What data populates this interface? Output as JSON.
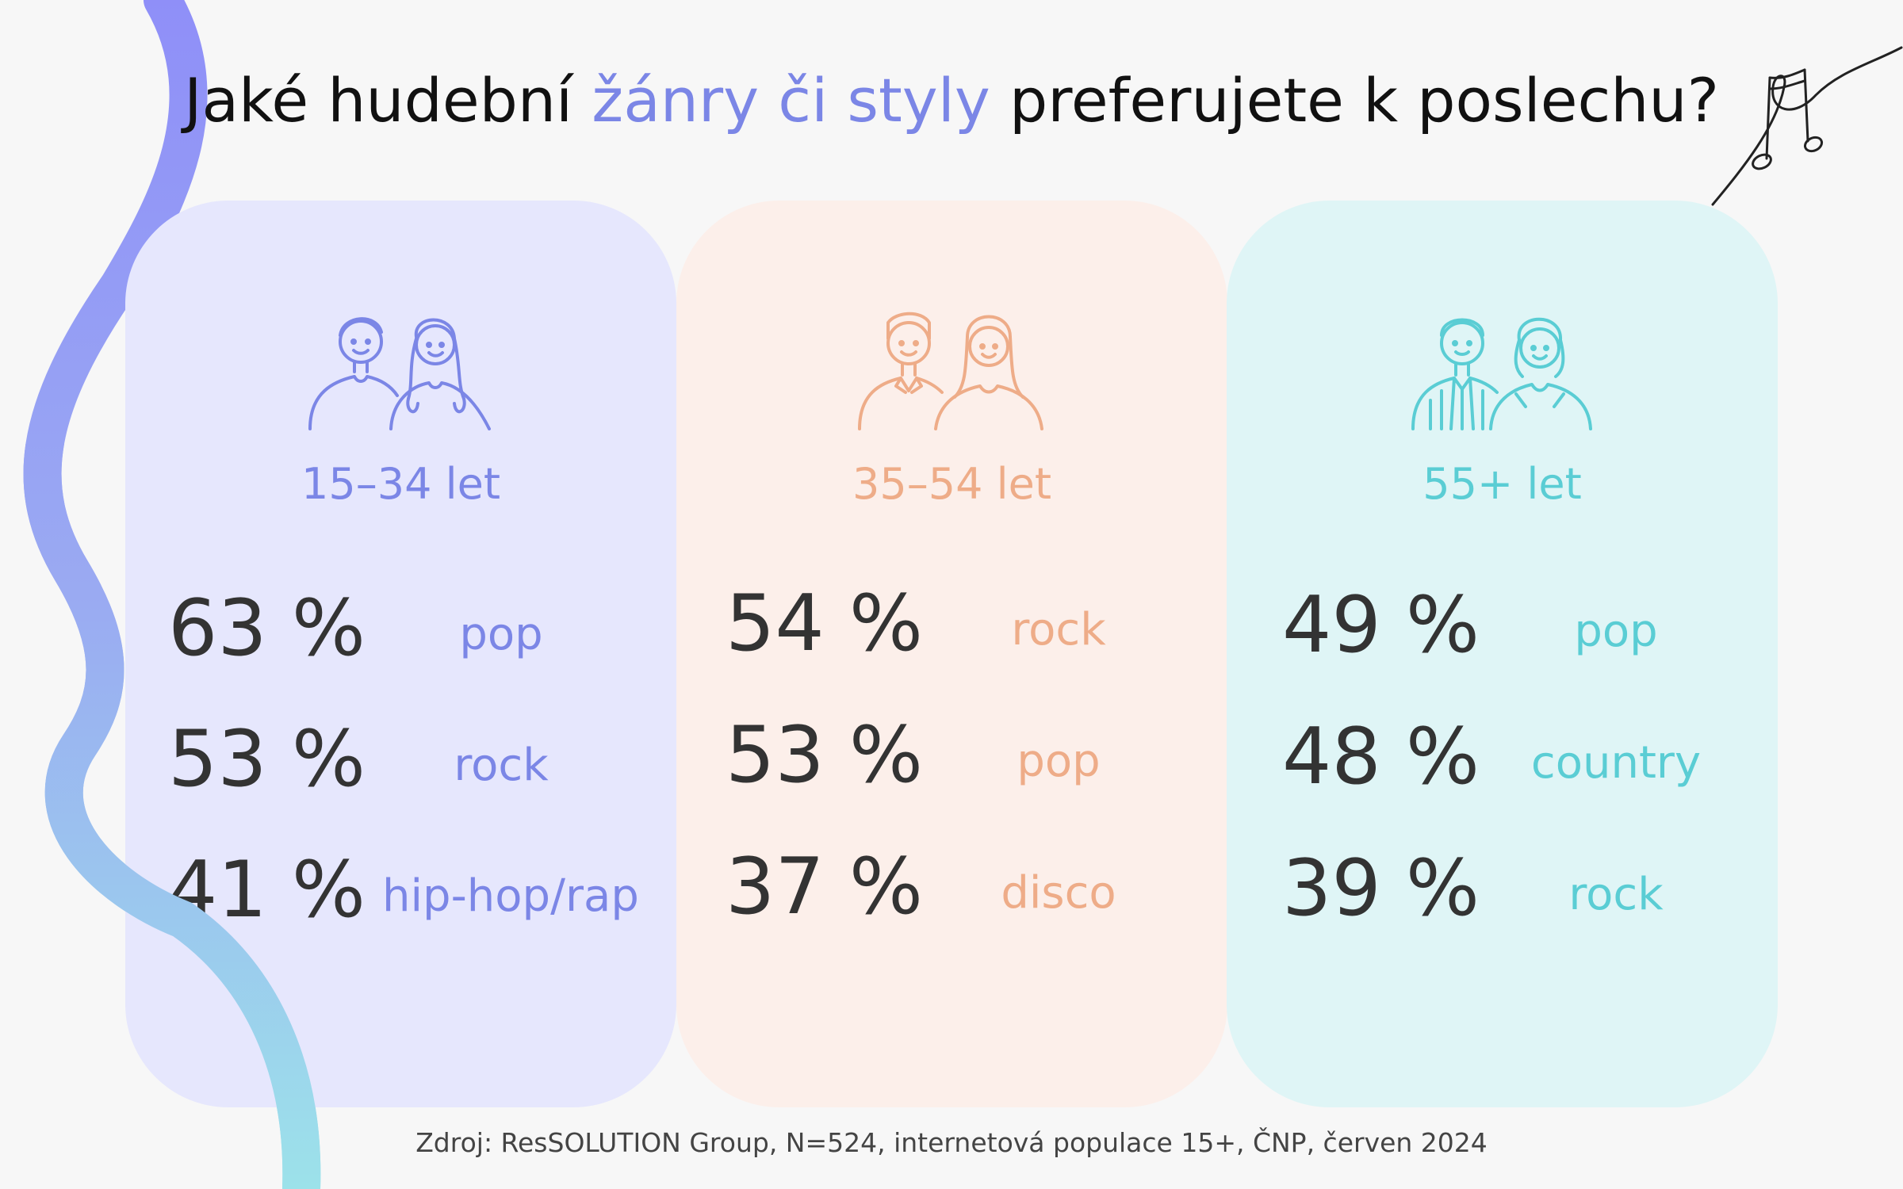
{
  "title": {
    "before": "Jaké hudební ",
    "highlight": "žánry či styly",
    "after": " preferujete k poslechu?"
  },
  "colors": {
    "background": "#f7f7f7",
    "violet": "#7b86e6",
    "peach": "#eeac88",
    "teal": "#5acdd4",
    "violet_card": "#e6e7fd",
    "peach_card": "#fcefea",
    "teal_card": "#dff5f6",
    "number": "#333333"
  },
  "groups": [
    {
      "label": "15–34 let",
      "icon": "young-couple-icon",
      "rows": [
        {
          "pct": "63 %",
          "genre": "pop"
        },
        {
          "pct": "53 %",
          "genre": "rock"
        },
        {
          "pct": "41 %",
          "genre": "hip-hop/rap"
        }
      ]
    },
    {
      "label": "35–54 let",
      "icon": "adult-couple-icon",
      "rows": [
        {
          "pct": "54 %",
          "genre": "rock"
        },
        {
          "pct": "53 %",
          "genre": "pop"
        },
        {
          "pct": "37 %",
          "genre": "disco"
        }
      ]
    },
    {
      "label": "55+ let",
      "icon": "senior-couple-icon",
      "rows": [
        {
          "pct": "49 %",
          "genre": "pop"
        },
        {
          "pct": "48 %",
          "genre": "country"
        },
        {
          "pct": "39 %",
          "genre": "rock"
        }
      ]
    }
  ],
  "source": "Zdroj: ResSOLUTION Group, N=524, internetová populace 15+, ČNP, červen 2024"
}
